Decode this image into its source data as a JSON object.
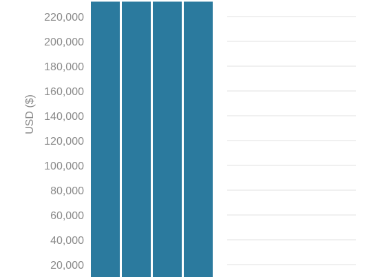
{
  "chart_data": {
    "type": "bar",
    "ylabel": "USD ($)",
    "ylim": [
      10000,
      232000
    ],
    "yticks": [
      {
        "value": 20000,
        "label": "20,000"
      },
      {
        "value": 40000,
        "label": "40,000"
      },
      {
        "value": 60000,
        "label": "60,000"
      },
      {
        "value": 80000,
        "label": "80,000"
      },
      {
        "value": 100000,
        "label": "100,000"
      },
      {
        "value": 120000,
        "label": "120,000"
      },
      {
        "value": 140000,
        "label": "140,000"
      },
      {
        "value": 160000,
        "label": "160,000"
      },
      {
        "value": 180000,
        "label": "180,000"
      },
      {
        "value": 200000,
        "label": "200,000"
      },
      {
        "value": 220000,
        "label": "220,000"
      }
    ],
    "bars": [
      {
        "value": 232000
      },
      {
        "value": 232000
      },
      {
        "value": 232000
      },
      {
        "value": 232000
      }
    ],
    "grid": true,
    "colors": {
      "bar": "#2b7a9e",
      "grid": "#ececec",
      "text": "#8a8a8a"
    }
  }
}
